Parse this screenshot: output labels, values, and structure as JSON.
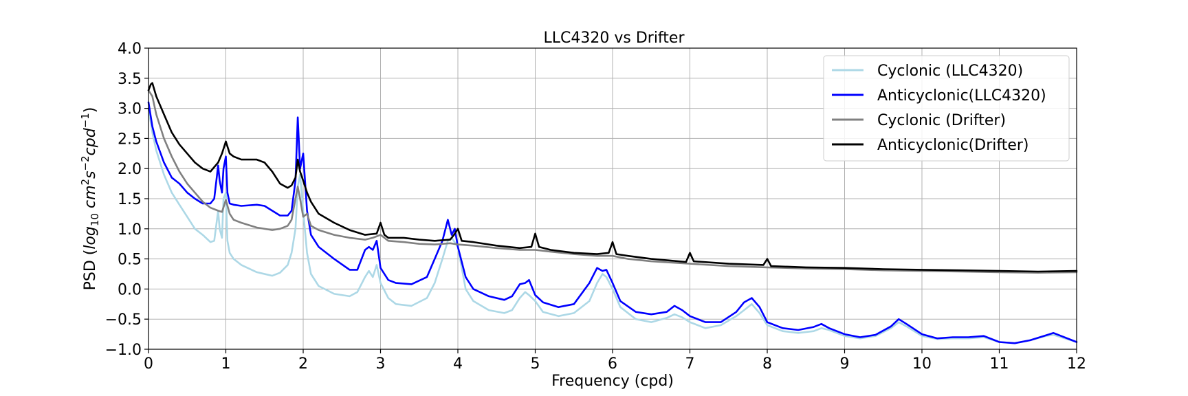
{
  "chart_data": {
    "type": "line",
    "title": "LLC4320 vs Drifter",
    "xlabel": "Frequency (cpd)",
    "ylabel_prefix": "PSD (",
    "ylabel_math": "log",
    "ylabel_sub": "10",
    "ylabel_unit_a": " cm",
    "ylabel_sup_a": "2",
    "ylabel_unit_b": "s",
    "ylabel_sup_b": "−2",
    "ylabel_unit_c": "cpd",
    "ylabel_sup_c": "−1",
    "ylabel_suffix": ")",
    "xlim": [
      0,
      12
    ],
    "ylim": [
      -1.0,
      4.0
    ],
    "xticks": [
      0,
      1,
      2,
      3,
      4,
      5,
      6,
      7,
      8,
      9,
      10,
      11,
      12
    ],
    "xtick_labels": [
      "0",
      "1",
      "2",
      "3",
      "4",
      "5",
      "6",
      "7",
      "8",
      "9",
      "10",
      "11",
      "12"
    ],
    "yticks": [
      -1.0,
      -0.5,
      0.0,
      0.5,
      1.0,
      1.5,
      2.0,
      2.5,
      3.0,
      3.5,
      4.0
    ],
    "ytick_labels": [
      "−1.0",
      "−0.5",
      "0.0",
      "0.5",
      "1.0",
      "1.5",
      "2.0",
      "2.5",
      "3.0",
      "3.5",
      "4.0"
    ],
    "grid": true,
    "legend_position": "top-right",
    "series": [
      {
        "name": "Cyclonic (LLC4320)",
        "color": "#add8e6",
        "x": [
          0.0,
          0.05,
          0.1,
          0.2,
          0.3,
          0.4,
          0.5,
          0.6,
          0.7,
          0.8,
          0.85,
          0.9,
          0.92,
          0.95,
          0.97,
          1.0,
          1.02,
          1.05,
          1.1,
          1.2,
          1.4,
          1.6,
          1.7,
          1.8,
          1.85,
          1.9,
          1.93,
          1.96,
          2.0,
          2.05,
          2.1,
          2.2,
          2.4,
          2.6,
          2.7,
          2.8,
          2.85,
          2.9,
          2.95,
          3.0,
          3.1,
          3.2,
          3.4,
          3.6,
          3.7,
          3.8,
          3.87,
          3.92,
          4.0,
          4.1,
          4.2,
          4.4,
          4.6,
          4.7,
          4.8,
          4.87,
          4.92,
          5.0,
          5.1,
          5.3,
          5.5,
          5.7,
          5.8,
          5.87,
          5.92,
          6.0,
          6.1,
          6.3,
          6.5,
          6.7,
          6.8,
          6.9,
          7.0,
          7.2,
          7.4,
          7.6,
          7.7,
          7.8,
          7.9,
          8.0,
          8.2,
          8.4,
          8.6,
          8.7,
          8.8,
          9.0,
          9.2,
          9.4,
          9.6,
          9.7,
          9.8,
          10.0,
          10.2,
          10.4,
          10.6,
          10.8,
          11.0,
          11.2,
          11.4,
          11.6,
          11.7,
          11.8,
          12.0
        ],
        "y": [
          3.0,
          2.6,
          2.3,
          1.9,
          1.6,
          1.4,
          1.2,
          1.0,
          0.9,
          0.78,
          0.8,
          1.3,
          1.0,
          0.85,
          1.5,
          1.6,
          0.8,
          0.6,
          0.5,
          0.4,
          0.28,
          0.22,
          0.27,
          0.4,
          0.6,
          1.0,
          1.7,
          1.9,
          1.3,
          0.6,
          0.25,
          0.05,
          -0.08,
          -0.12,
          -0.05,
          0.2,
          0.3,
          0.2,
          0.4,
          0.1,
          -0.15,
          -0.25,
          -0.28,
          -0.15,
          0.1,
          0.5,
          0.8,
          0.85,
          0.7,
          0.0,
          -0.2,
          -0.35,
          -0.4,
          -0.35,
          -0.15,
          -0.05,
          -0.1,
          -0.2,
          -0.38,
          -0.45,
          -0.4,
          -0.2,
          0.1,
          0.25,
          0.2,
          0.0,
          -0.3,
          -0.5,
          -0.55,
          -0.48,
          -0.42,
          -0.47,
          -0.55,
          -0.65,
          -0.6,
          -0.45,
          -0.35,
          -0.25,
          -0.4,
          -0.6,
          -0.7,
          -0.73,
          -0.7,
          -0.65,
          -0.68,
          -0.78,
          -0.82,
          -0.78,
          -0.65,
          -0.55,
          -0.62,
          -0.78,
          -0.83,
          -0.82,
          -0.82,
          -0.8,
          -0.88,
          -0.9,
          -0.85,
          -0.78,
          -0.76,
          -0.8,
          -0.88
        ]
      },
      {
        "name": "Anticyclonic(LLC4320)",
        "color": "#0000ff",
        "x": [
          0.0,
          0.05,
          0.1,
          0.2,
          0.3,
          0.4,
          0.5,
          0.6,
          0.7,
          0.8,
          0.85,
          0.9,
          0.92,
          0.95,
          0.97,
          1.0,
          1.02,
          1.05,
          1.1,
          1.2,
          1.4,
          1.5,
          1.6,
          1.7,
          1.8,
          1.85,
          1.9,
          1.93,
          1.96,
          2.0,
          2.05,
          2.1,
          2.2,
          2.4,
          2.6,
          2.7,
          2.8,
          2.85,
          2.9,
          2.95,
          3.0,
          3.1,
          3.2,
          3.4,
          3.6,
          3.7,
          3.8,
          3.87,
          3.92,
          3.96,
          4.0,
          4.1,
          4.2,
          4.4,
          4.6,
          4.7,
          4.8,
          4.87,
          4.92,
          5.0,
          5.1,
          5.3,
          5.5,
          5.7,
          5.8,
          5.87,
          5.92,
          6.0,
          6.1,
          6.3,
          6.5,
          6.7,
          6.8,
          6.9,
          7.0,
          7.2,
          7.4,
          7.6,
          7.7,
          7.8,
          7.9,
          8.0,
          8.2,
          8.4,
          8.6,
          8.7,
          8.8,
          9.0,
          9.2,
          9.4,
          9.6,
          9.7,
          9.8,
          10.0,
          10.2,
          10.4,
          10.6,
          10.8,
          11.0,
          11.2,
          11.4,
          11.6,
          11.7,
          11.8,
          12.0
        ],
        "y": [
          3.1,
          2.7,
          2.45,
          2.1,
          1.85,
          1.75,
          1.6,
          1.5,
          1.42,
          1.42,
          1.5,
          2.05,
          1.8,
          1.6,
          2.0,
          2.2,
          1.6,
          1.42,
          1.4,
          1.38,
          1.4,
          1.38,
          1.3,
          1.22,
          1.22,
          1.3,
          1.8,
          2.85,
          2.0,
          2.25,
          1.3,
          0.9,
          0.7,
          0.5,
          0.32,
          0.32,
          0.65,
          0.7,
          0.65,
          0.8,
          0.35,
          0.15,
          0.1,
          0.08,
          0.2,
          0.5,
          0.8,
          1.15,
          0.9,
          1.0,
          0.7,
          0.2,
          0.0,
          -0.12,
          -0.18,
          -0.12,
          0.08,
          0.1,
          0.15,
          -0.1,
          -0.22,
          -0.3,
          -0.25,
          0.1,
          0.35,
          0.3,
          0.32,
          0.1,
          -0.2,
          -0.38,
          -0.42,
          -0.38,
          -0.28,
          -0.35,
          -0.45,
          -0.55,
          -0.55,
          -0.38,
          -0.22,
          -0.15,
          -0.3,
          -0.55,
          -0.65,
          -0.68,
          -0.63,
          -0.58,
          -0.65,
          -0.75,
          -0.8,
          -0.76,
          -0.62,
          -0.5,
          -0.58,
          -0.75,
          -0.82,
          -0.8,
          -0.8,
          -0.78,
          -0.88,
          -0.9,
          -0.85,
          -0.77,
          -0.73,
          -0.78,
          -0.88
        ]
      },
      {
        "name": "Cyclonic (Drifter)",
        "color": "#808080",
        "x": [
          0.0,
          0.05,
          0.1,
          0.2,
          0.3,
          0.4,
          0.5,
          0.6,
          0.7,
          0.8,
          0.9,
          0.95,
          1.0,
          1.05,
          1.1,
          1.2,
          1.4,
          1.6,
          1.7,
          1.8,
          1.85,
          1.9,
          1.93,
          1.96,
          2.0,
          2.05,
          2.1,
          2.2,
          2.4,
          2.6,
          2.8,
          2.9,
          3.0,
          3.1,
          3.3,
          3.5,
          3.7,
          3.9,
          4.0,
          4.2,
          4.5,
          4.8,
          5.0,
          5.2,
          5.5,
          5.8,
          6.0,
          6.2,
          6.5,
          7.0,
          7.5,
          8.0,
          8.5,
          9.0,
          9.5,
          10.0,
          10.5,
          11.0,
          11.5,
          12.0
        ],
        "y": [
          3.3,
          3.2,
          2.9,
          2.5,
          2.2,
          1.95,
          1.75,
          1.6,
          1.45,
          1.35,
          1.3,
          1.28,
          1.48,
          1.25,
          1.15,
          1.1,
          1.02,
          0.98,
          1.0,
          1.05,
          1.15,
          1.5,
          1.7,
          1.5,
          1.2,
          1.25,
          1.05,
          0.98,
          0.9,
          0.85,
          0.82,
          0.85,
          0.9,
          0.8,
          0.78,
          0.75,
          0.74,
          0.76,
          0.74,
          0.72,
          0.68,
          0.65,
          0.65,
          0.62,
          0.58,
          0.55,
          0.55,
          0.5,
          0.46,
          0.42,
          0.38,
          0.36,
          0.34,
          0.33,
          0.31,
          0.3,
          0.29,
          0.28,
          0.27,
          0.28
        ]
      },
      {
        "name": "Anticyclonic(Drifter)",
        "color": "#000000",
        "x": [
          0.0,
          0.03,
          0.05,
          0.1,
          0.2,
          0.3,
          0.4,
          0.5,
          0.6,
          0.7,
          0.8,
          0.9,
          0.95,
          1.0,
          1.05,
          1.1,
          1.2,
          1.3,
          1.4,
          1.5,
          1.6,
          1.7,
          1.8,
          1.85,
          1.9,
          1.93,
          1.96,
          2.0,
          2.05,
          2.1,
          2.2,
          2.4,
          2.6,
          2.8,
          2.95,
          3.0,
          3.05,
          3.1,
          3.3,
          3.5,
          3.7,
          3.9,
          3.95,
          4.0,
          4.05,
          4.2,
          4.5,
          4.8,
          4.95,
          5.0,
          5.05,
          5.2,
          5.5,
          5.8,
          5.95,
          6.0,
          6.05,
          6.2,
          6.5,
          6.95,
          7.0,
          7.05,
          7.5,
          7.95,
          8.0,
          8.05,
          8.5,
          9.0,
          9.5,
          10.0,
          10.5,
          11.0,
          11.5,
          12.0
        ],
        "y": [
          3.3,
          3.4,
          3.42,
          3.2,
          2.9,
          2.6,
          2.4,
          2.25,
          2.1,
          2.0,
          1.95,
          2.1,
          2.25,
          2.45,
          2.25,
          2.2,
          2.15,
          2.15,
          2.15,
          2.1,
          1.95,
          1.75,
          1.68,
          1.72,
          1.85,
          2.15,
          1.95,
          1.8,
          1.6,
          1.45,
          1.25,
          1.1,
          0.98,
          0.9,
          0.92,
          1.1,
          0.9,
          0.85,
          0.85,
          0.82,
          0.8,
          0.82,
          0.9,
          1.0,
          0.8,
          0.78,
          0.72,
          0.68,
          0.7,
          0.92,
          0.7,
          0.65,
          0.6,
          0.58,
          0.6,
          0.78,
          0.58,
          0.55,
          0.5,
          0.45,
          0.6,
          0.46,
          0.42,
          0.4,
          0.5,
          0.38,
          0.36,
          0.35,
          0.33,
          0.32,
          0.31,
          0.3,
          0.29,
          0.3
        ]
      }
    ]
  }
}
